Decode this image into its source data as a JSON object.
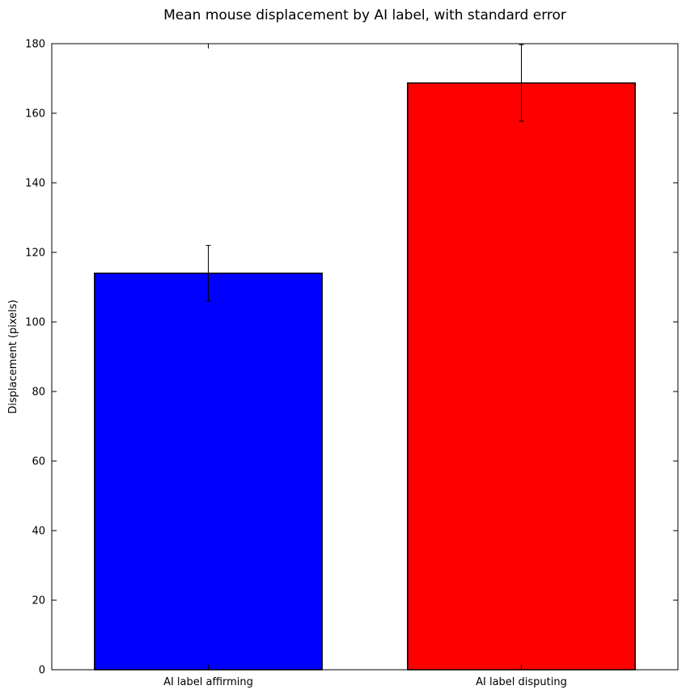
{
  "chart_data": {
    "type": "bar",
    "title": "Mean mouse displacement by AI label, with standard error",
    "xlabel": "",
    "ylabel": "Displacement (pixels)",
    "categories": [
      "AI label affirming",
      "AI label disputing"
    ],
    "values": [
      114,
      168.7
    ],
    "errors": [
      8,
      11
    ],
    "colors": [
      "#0000ff",
      "#ff0000"
    ],
    "ylim": [
      0,
      180
    ],
    "yticks": [
      0,
      20,
      40,
      60,
      80,
      100,
      120,
      140,
      160,
      180
    ],
    "grid": false,
    "legend": "none"
  }
}
